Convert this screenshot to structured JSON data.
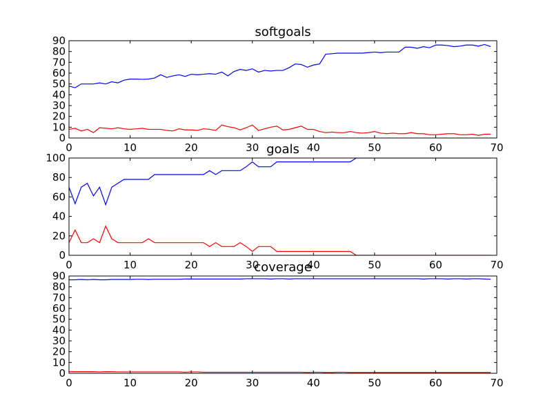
{
  "chart_data": [
    {
      "type": "line",
      "title": "softgoals",
      "xlabel": "",
      "ylabel": "",
      "xlim": [
        0,
        70
      ],
      "ylim": [
        0,
        90
      ],
      "xticks": [
        "0",
        "10",
        "20",
        "30",
        "40",
        "50",
        "60",
        "70"
      ],
      "yticks": [
        "0",
        "10",
        "20",
        "30",
        "40",
        "50",
        "60",
        "70",
        "80",
        "90"
      ],
      "grid": false,
      "series": [
        {
          "color": "#0000ff",
          "values": [
            48,
            46.5,
            50,
            50,
            50,
            51,
            50,
            52,
            51,
            53.5,
            54.5,
            54.5,
            54.3,
            54.5,
            55.5,
            58.5,
            56,
            57.5,
            58.5,
            57,
            59,
            58.5,
            59,
            59.5,
            59,
            61,
            57.5,
            61.5,
            63.5,
            62.5,
            64,
            61,
            62.5,
            62,
            62.5,
            62.5,
            65,
            68.5,
            68,
            65.5,
            67.5,
            68.5,
            77.5,
            78,
            78.5,
            78.5,
            78.5,
            78.5,
            78.5,
            79,
            79.5,
            79,
            79.5,
            79.5,
            79.5,
            84,
            84,
            83,
            84.5,
            83.5,
            86,
            86,
            85.5,
            84.5,
            85,
            86,
            86,
            85,
            86.5,
            84.5
          ]
        },
        {
          "color": "#ff0000",
          "values": [
            8,
            9,
            6.5,
            8,
            5,
            9.5,
            9,
            8.5,
            9.5,
            8.5,
            8,
            8.5,
            9,
            8,
            8,
            8,
            7,
            6.5,
            8.5,
            7.5,
            7.5,
            7,
            8.5,
            8,
            7,
            12,
            10.5,
            9.5,
            7.5,
            9.5,
            12,
            7,
            8.5,
            10,
            11,
            7.5,
            8,
            9.5,
            11,
            8,
            8,
            6,
            5,
            5.5,
            5,
            5,
            6,
            5,
            4.5,
            5,
            6,
            4.5,
            4,
            4.5,
            4,
            4,
            5,
            4,
            4,
            3,
            3,
            3.5,
            4,
            4,
            3,
            3,
            3.5,
            2.5,
            3.5,
            3.5
          ]
        }
      ]
    },
    {
      "type": "line",
      "title": "goals",
      "xlabel": "",
      "ylabel": "",
      "xlim": [
        0,
        70
      ],
      "ylim": [
        0,
        100
      ],
      "xticks": [
        "0",
        "10",
        "20",
        "30",
        "40",
        "50",
        "60",
        "70"
      ],
      "yticks": [
        "0",
        "20",
        "40",
        "60",
        "80",
        "100"
      ],
      "grid": false,
      "series": [
        {
          "color": "#0000ff",
          "values": [
            70,
            53,
            70,
            74,
            61,
            70,
            52,
            70,
            74,
            78,
            78,
            78,
            78,
            78,
            83,
            83,
            83,
            83,
            83,
            83,
            83,
            83,
            83,
            87,
            83,
            87,
            87,
            87,
            87,
            91,
            96,
            91,
            91,
            91,
            96,
            96,
            96,
            96,
            96,
            96,
            96,
            96,
            96,
            96,
            96,
            96,
            96,
            100,
            100,
            100,
            100,
            100,
            100,
            100,
            100,
            100,
            100,
            100,
            100,
            100,
            100,
            100,
            100,
            100,
            100,
            100,
            100,
            100,
            100,
            100
          ]
        },
        {
          "color": "#ff0000",
          "values": [
            13,
            26,
            13,
            13,
            17,
            13,
            30,
            17,
            13,
            13,
            13,
            13,
            13,
            17,
            13,
            13,
            13,
            13,
            13,
            13,
            13,
            13,
            13,
            9,
            13,
            9,
            9,
            9,
            13,
            9,
            4,
            9,
            9,
            9,
            4,
            4,
            4,
            4,
            4,
            4,
            4,
            4,
            4,
            4,
            4,
            4,
            4,
            0,
            0,
            0,
            0,
            0,
            0,
            0,
            0,
            0,
            0,
            0,
            0,
            0,
            0,
            0,
            0,
            0,
            0,
            0,
            0,
            0,
            0,
            0
          ]
        }
      ]
    },
    {
      "type": "line",
      "title": "coverage",
      "xlabel": "",
      "ylabel": "",
      "xlim": [
        0,
        70
      ],
      "ylim": [
        0,
        90
      ],
      "xticks": [
        "0",
        "10",
        "20",
        "30",
        "40",
        "50",
        "60",
        "70"
      ],
      "yticks": [
        "0",
        "10",
        "20",
        "30",
        "40",
        "50",
        "60",
        "70",
        "80",
        "90"
      ],
      "grid": false,
      "series": [
        {
          "color": "#0000ff",
          "values": [
            86.5,
            86.5,
            86.8,
            86.5,
            86.8,
            86.5,
            86.5,
            86.8,
            86.8,
            86.8,
            86.8,
            87,
            87,
            86.8,
            87,
            87,
            87,
            87,
            87,
            87.2,
            87.2,
            87.2,
            87.2,
            87.2,
            87.2,
            87.2,
            87.2,
            87.2,
            87.2,
            87.5,
            87.5,
            87.5,
            87.5,
            87.2,
            87.5,
            87.5,
            87.2,
            87.5,
            87.5,
            87.5,
            87.5,
            87.5,
            87.5,
            87.5,
            87.5,
            87.5,
            87.5,
            87.5,
            87.5,
            87.5,
            87.5,
            87.5,
            87.5,
            87.5,
            87.5,
            87.5,
            87.5,
            87.5,
            87.2,
            87.5,
            87.5,
            87.5,
            87.2,
            87.5,
            87.5,
            87.2,
            87.5,
            87.5,
            87.2,
            87
          ]
        },
        {
          "color": "#ff0000",
          "values": [
            1.5,
            1.5,
            1.5,
            1.5,
            1.5,
            1.3,
            1.5,
            1.5,
            1.3,
            1.3,
            1.3,
            1.3,
            1.3,
            1.3,
            1.3,
            1.3,
            1.3,
            1.3,
            1.3,
            1,
            1.3,
            1.3,
            1,
            1,
            1,
            1,
            1,
            1,
            1,
            1,
            1,
            1,
            1,
            1,
            1,
            1,
            1,
            1,
            1,
            0.8,
            1,
            1,
            0.8,
            0.8,
            1,
            1,
            0.8,
            0.8,
            0.8,
            0.8,
            0.8,
            0.8,
            0.8,
            0.8,
            0.8,
            0.8,
            0.8,
            0.8,
            0.8,
            0.8,
            0.8,
            0.8,
            0.8,
            0.8,
            0.8,
            0.8,
            0.8,
            0.8,
            0.8,
            0.8
          ]
        }
      ]
    }
  ]
}
